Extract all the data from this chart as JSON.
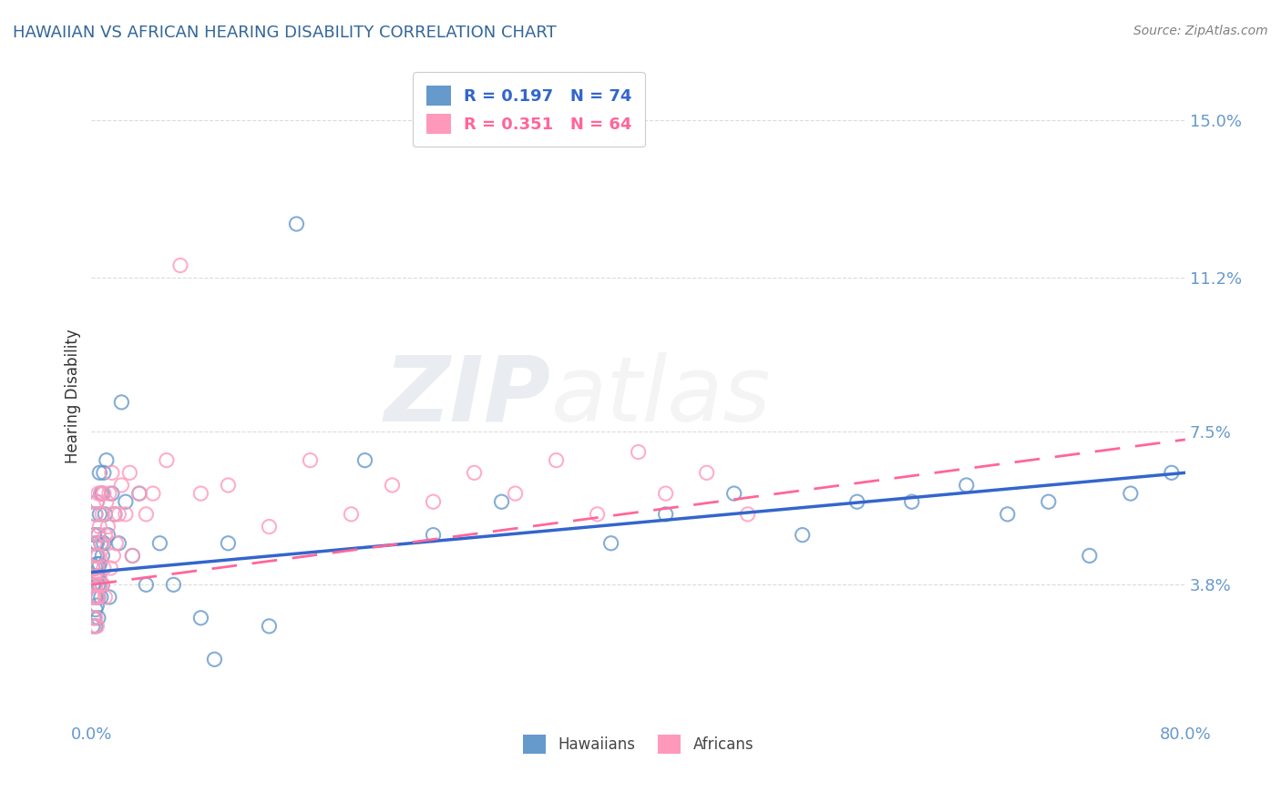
{
  "title": "HAWAIIAN VS AFRICAN HEARING DISABILITY CORRELATION CHART",
  "source": "Source: ZipAtlas.com",
  "ylabel": "Hearing Disability",
  "xlim": [
    0.0,
    0.8
  ],
  "ylim": [
    0.005,
    0.162
  ],
  "yticks": [
    0.038,
    0.075,
    0.112,
    0.15
  ],
  "ytick_labels": [
    "3.8%",
    "7.5%",
    "11.2%",
    "15.0%"
  ],
  "xtick_labels": [
    "0.0%",
    "80.0%"
  ],
  "hawaiian_color": "#6699CC",
  "african_color": "#FF99BB",
  "hawaiian_line_color": "#3366CC",
  "african_line_color": "#FF6699",
  "r_hawaiian": 0.197,
  "n_hawaiian": 74,
  "r_african": 0.351,
  "n_african": 64,
  "background_color": "#FFFFFF",
  "grid_color": "#CCCCCC",
  "title_color": "#336699",
  "tick_color": "#6699CC",
  "watermark_zip": "ZIP",
  "watermark_atlas": "atlas",
  "hawaiian_x": [
    0.001,
    0.001,
    0.001,
    0.002,
    0.002,
    0.002,
    0.002,
    0.002,
    0.003,
    0.003,
    0.003,
    0.003,
    0.003,
    0.003,
    0.003,
    0.004,
    0.004,
    0.004,
    0.004,
    0.004,
    0.004,
    0.004,
    0.005,
    0.005,
    0.005,
    0.005,
    0.005,
    0.005,
    0.006,
    0.006,
    0.006,
    0.006,
    0.007,
    0.007,
    0.007,
    0.008,
    0.008,
    0.008,
    0.009,
    0.009,
    0.01,
    0.011,
    0.012,
    0.013,
    0.015,
    0.017,
    0.02,
    0.022,
    0.025,
    0.03,
    0.035,
    0.04,
    0.05,
    0.06,
    0.08,
    0.09,
    0.1,
    0.13,
    0.15,
    0.2,
    0.25,
    0.3,
    0.38,
    0.42,
    0.47,
    0.52,
    0.56,
    0.6,
    0.64,
    0.67,
    0.7,
    0.73,
    0.76,
    0.79
  ],
  "hawaiian_y": [
    0.038,
    0.042,
    0.028,
    0.05,
    0.035,
    0.045,
    0.038,
    0.03,
    0.055,
    0.04,
    0.048,
    0.035,
    0.042,
    0.028,
    0.032,
    0.058,
    0.043,
    0.035,
    0.048,
    0.04,
    0.033,
    0.045,
    0.05,
    0.038,
    0.043,
    0.035,
    0.04,
    0.03,
    0.055,
    0.065,
    0.043,
    0.038,
    0.06,
    0.048,
    0.035,
    0.06,
    0.045,
    0.038,
    0.065,
    0.048,
    0.055,
    0.068,
    0.05,
    0.035,
    0.06,
    0.055,
    0.048,
    0.082,
    0.058,
    0.045,
    0.06,
    0.038,
    0.048,
    0.038,
    0.03,
    0.02,
    0.048,
    0.028,
    0.125,
    0.068,
    0.05,
    0.058,
    0.048,
    0.055,
    0.06,
    0.05,
    0.058,
    0.058,
    0.062,
    0.055,
    0.058,
    0.045,
    0.06,
    0.065
  ],
  "african_x": [
    0.001,
    0.001,
    0.001,
    0.002,
    0.002,
    0.002,
    0.002,
    0.003,
    0.003,
    0.003,
    0.003,
    0.003,
    0.004,
    0.004,
    0.004,
    0.004,
    0.005,
    0.005,
    0.005,
    0.005,
    0.006,
    0.006,
    0.006,
    0.007,
    0.007,
    0.008,
    0.008,
    0.009,
    0.009,
    0.01,
    0.01,
    0.011,
    0.012,
    0.013,
    0.014,
    0.015,
    0.016,
    0.017,
    0.018,
    0.02,
    0.022,
    0.025,
    0.028,
    0.03,
    0.035,
    0.04,
    0.045,
    0.055,
    0.065,
    0.08,
    0.1,
    0.13,
    0.16,
    0.19,
    0.22,
    0.25,
    0.28,
    0.31,
    0.34,
    0.37,
    0.4,
    0.42,
    0.45,
    0.48
  ],
  "african_y": [
    0.035,
    0.03,
    0.042,
    0.048,
    0.035,
    0.04,
    0.028,
    0.055,
    0.038,
    0.045,
    0.03,
    0.038,
    0.058,
    0.042,
    0.035,
    0.028,
    0.06,
    0.045,
    0.035,
    0.05,
    0.052,
    0.04,
    0.038,
    0.06,
    0.048,
    0.038,
    0.055,
    0.042,
    0.06,
    0.05,
    0.035,
    0.058,
    0.052,
    0.06,
    0.042,
    0.065,
    0.045,
    0.055,
    0.048,
    0.055,
    0.062,
    0.055,
    0.065,
    0.045,
    0.06,
    0.055,
    0.06,
    0.068,
    0.115,
    0.06,
    0.062,
    0.052,
    0.068,
    0.055,
    0.062,
    0.058,
    0.065,
    0.06,
    0.068,
    0.055,
    0.07,
    0.06,
    0.065,
    0.055
  ],
  "haw_trend_x0": 0.0,
  "haw_trend_y0": 0.041,
  "haw_trend_x1": 0.8,
  "haw_trend_y1": 0.065,
  "afr_trend_x0": 0.0,
  "afr_trend_y0": 0.038,
  "afr_trend_x1": 0.8,
  "afr_trend_y1": 0.073
}
